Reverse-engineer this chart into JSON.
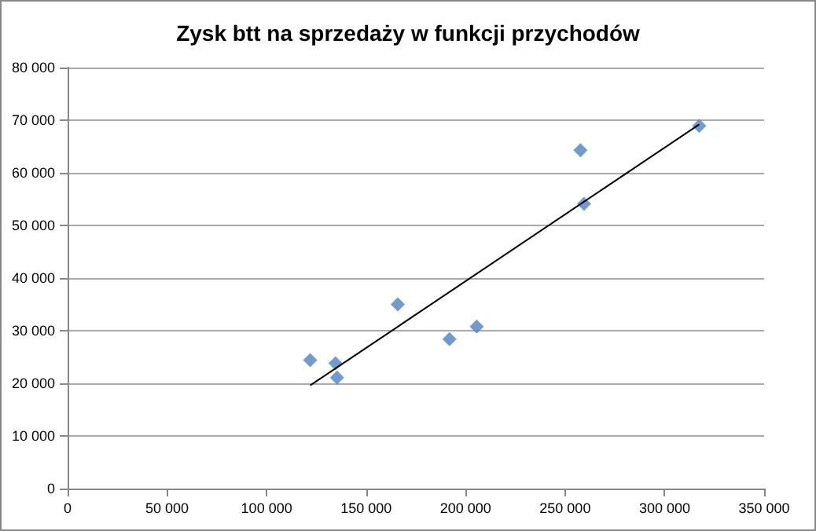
{
  "chart_data": {
    "type": "scatter",
    "title": "Zysk btt na sprzedaży w funkcji przychodów",
    "x": [
      121900,
      134600,
      135400,
      165900,
      191900,
      205600,
      257700,
      259500,
      317400
    ],
    "series": [
      {
        "color": "#4f81bd",
        "marker": "diamond",
        "values": [
          24400,
          23800,
          21100,
          35000,
          28400,
          30800,
          64300,
          54100,
          68900
        ]
      },
      {
        "type": "line",
        "color": "#000000",
        "marker": "none",
        "x": [
          121900,
          317400
        ],
        "values": [
          19600,
          69200
        ]
      }
    ],
    "xlim": [
      0,
      350000
    ],
    "ylim": [
      0,
      80000
    ],
    "xticks": [
      0,
      {
        "value": 50000,
        "label": "50 000"
      },
      {
        "value": 100000,
        "label": "100 000"
      },
      {
        "value": 150000,
        "label": "150 000"
      },
      {
        "value": 200000,
        "label": "200 000"
      },
      {
        "value": 250000,
        "label": "250 000"
      },
      {
        "value": 300000,
        "label": "300 000"
      },
      {
        "value": 350000,
        "label": "350 000"
      }
    ],
    "yticks": [
      0,
      {
        "value": 10000,
        "label": "10 000"
      },
      {
        "value": 20000,
        "label": "20 000"
      },
      {
        "value": 30000,
        "label": "30 000"
      },
      {
        "value": 40000,
        "label": "40 000"
      },
      {
        "value": 50000,
        "label": "50 000"
      },
      {
        "value": 60000,
        "label": "60 000"
      },
      {
        "value": 70000,
        "label": "70 000"
      },
      {
        "value": 80000,
        "label": "80 000"
      }
    ],
    "grid": "y"
  }
}
